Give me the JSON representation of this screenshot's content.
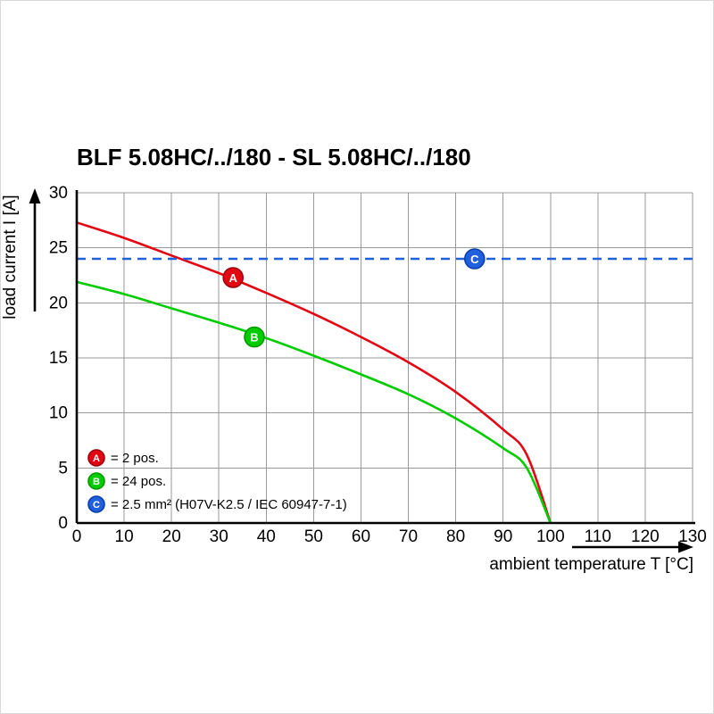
{
  "title": "BLF 5.08HC/../180 - SL 5.08HC/../180",
  "chart_data": {
    "type": "line",
    "title": "BLF 5.08HC/../180 - SL 5.08HC/../180",
    "xlabel": "ambient temperature T [°C]",
    "ylabel": "load current I [A]",
    "xlim": [
      0,
      130
    ],
    "ylim": [
      0,
      30
    ],
    "xticks": [
      0,
      10,
      20,
      30,
      40,
      50,
      60,
      70,
      80,
      90,
      100,
      110,
      120,
      130
    ],
    "yticks": [
      0,
      5,
      10,
      15,
      20,
      25,
      30
    ],
    "grid": true,
    "grid_color": "#999999",
    "legend_position": "lower left",
    "series": [
      {
        "name": "A",
        "label": "= 2 pos.",
        "color": "#e30613",
        "ring": "#9e0010",
        "style": "solid",
        "x": [
          0,
          10,
          20,
          30,
          40,
          50,
          60,
          70,
          80,
          90,
          95,
          100
        ],
        "y": [
          27.3,
          25.9,
          24.3,
          22.7,
          20.9,
          19.0,
          16.9,
          14.6,
          11.9,
          8.5,
          6.2,
          0
        ],
        "marker": {
          "letter": "A",
          "x": 33,
          "y": 22.3
        }
      },
      {
        "name": "B",
        "label": "= 24 pos.",
        "color": "#00cc00",
        "ring": "#009900",
        "style": "solid",
        "x": [
          0,
          10,
          20,
          30,
          40,
          50,
          60,
          70,
          80,
          90,
          95,
          100
        ],
        "y": [
          21.9,
          20.8,
          19.5,
          18.2,
          16.8,
          15.2,
          13.5,
          11.7,
          9.5,
          6.8,
          5.0,
          0
        ],
        "marker": {
          "letter": "B",
          "x": 37.5,
          "y": 16.9
        }
      },
      {
        "name": "C",
        "label": "= 2.5 mm² (H07V-K2.5 / IEC 60947-7-1)",
        "color": "#2060dd",
        "ring": "#0c3fae",
        "style": "dashed",
        "x": [
          0,
          130
        ],
        "y": [
          24,
          24
        ],
        "marker": {
          "letter": "C",
          "x": 84,
          "y": 24
        }
      }
    ]
  }
}
